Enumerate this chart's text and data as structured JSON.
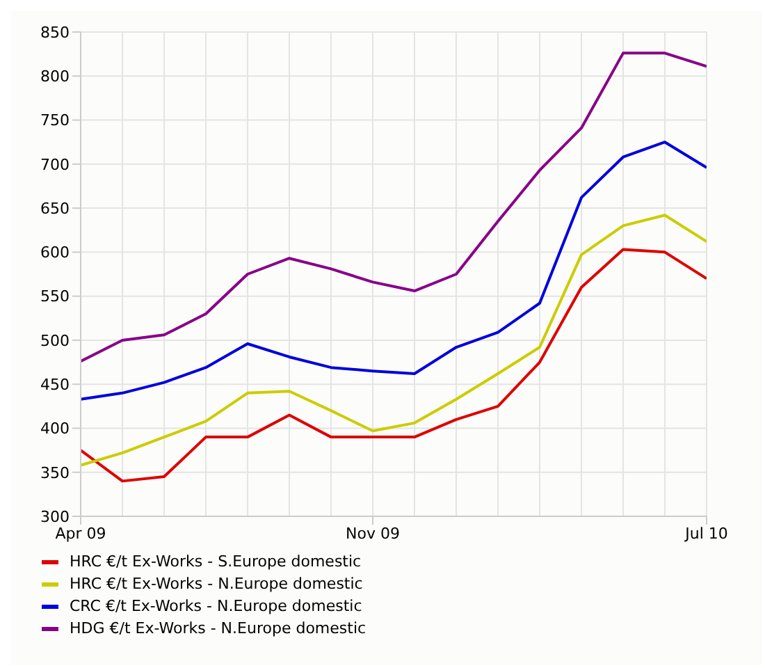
{
  "chart_data": {
    "type": "line",
    "x": [
      "2009-04",
      "2009-05",
      "2009-06",
      "2009-07",
      "2009-08",
      "2009-09",
      "2009-10",
      "2009-11",
      "2009-12",
      "2010-01",
      "2010-02",
      "2010-03",
      "2010-04",
      "2010-05",
      "2010-06",
      "2010-07"
    ],
    "series": [
      {
        "name": "HRC €/t Ex-Works - S.Europe domestic",
        "color": "#dd0000",
        "values": [
          375,
          340,
          345,
          390,
          390,
          415,
          390,
          390,
          390,
          410,
          425,
          475,
          560,
          603,
          600,
          570
        ]
      },
      {
        "name": "HRC €/t Ex-Works - N.Europe domestic",
        "color": "#cccc00",
        "values": [
          358,
          372,
          390,
          408,
          440,
          442,
          420,
          397,
          406,
          433,
          462,
          492,
          597,
          630,
          642,
          612
        ]
      },
      {
        "name": "CRC €/t Ex-Works - N.Europe domestic",
        "color": "#0000dd",
        "values": [
          433,
          440,
          452,
          469,
          496,
          481,
          469,
          465,
          462,
          492,
          509,
          542,
          662,
          708,
          725,
          696
        ]
      },
      {
        "name": "HDG €/t Ex-Works - N.Europe domestic",
        "color": "#880088",
        "values": [
          476,
          500,
          506,
          530,
          575,
          593,
          581,
          566,
          556,
          575,
          635,
          693,
          741,
          826,
          826,
          811
        ]
      }
    ],
    "xlim": [
      "2009-04",
      "2010-07"
    ],
    "xticks": [
      {
        "value": "2009-04",
        "label": "Apr 09"
      },
      {
        "value": "2009-11",
        "label": "Nov 09"
      },
      {
        "value": "2010-07",
        "label": "Jul 10"
      }
    ],
    "ylim": [
      300,
      850
    ],
    "yticks": [
      300,
      350,
      400,
      450,
      500,
      550,
      600,
      650,
      700,
      750,
      800,
      850
    ],
    "grid": true,
    "legend": "bottom",
    "marker": "none",
    "line_style": "solid"
  }
}
